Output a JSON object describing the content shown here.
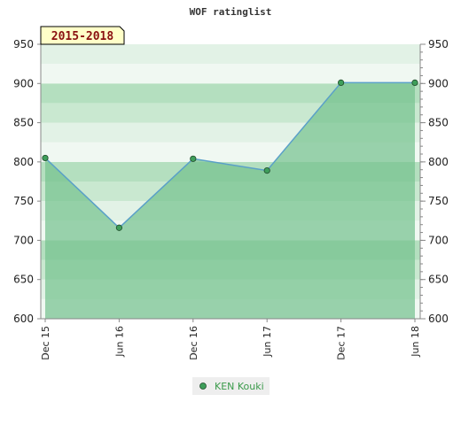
{
  "chart_data": {
    "type": "area",
    "title": "WOF ratinglist",
    "period_label": "2015-2018",
    "categories": [
      "Dec 15",
      "Jun 16",
      "Dec 16",
      "Jun 17",
      "Dec 17",
      "Jun 18"
    ],
    "series": [
      {
        "name": "KEN Kouki",
        "values": [
          805,
          716,
          804,
          789,
          901,
          901
        ]
      }
    ],
    "ylim": [
      600,
      950
    ],
    "yticks": [
      600,
      650,
      700,
      750,
      800,
      850,
      900,
      950
    ],
    "xlabel": "",
    "ylabel": "",
    "grid": true,
    "legend_position": "bottom-center"
  },
  "colors": {
    "background": "#ffffff",
    "band_light": "#f0f8f2",
    "band_alt": "#e2f2e6",
    "band_mid": "#c9e8d0",
    "band_dark": "#b4dfbf",
    "fill": "#76c28f",
    "line": "#5aa0c8",
    "marker_fill": "#3e9e5a",
    "marker_stroke": "#1f4a2a",
    "axis": "#888888",
    "label_bg": "#ffffc8",
    "label_border": "#000000",
    "legend_bg": "#eeeeee",
    "legend_text": "#3a9a4a"
  }
}
